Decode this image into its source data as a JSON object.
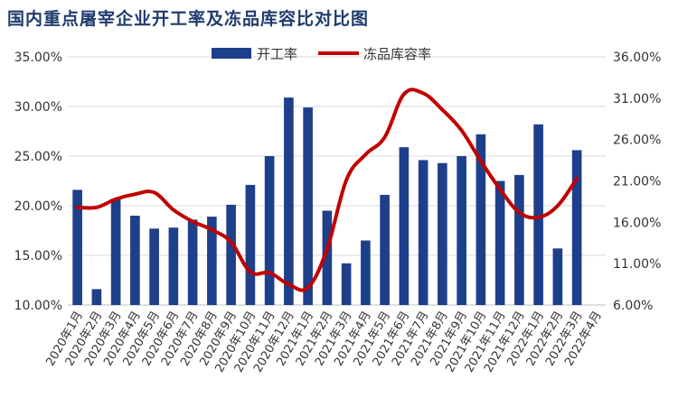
{
  "title": "国内重点屠宰企业开工率及冻品库容比对比图",
  "colors": {
    "bar": "#1e3f8a",
    "line": "#c00000",
    "title": "#1f3b6f"
  },
  "chart_data": {
    "type": "bar",
    "categories": [
      "2020年1月",
      "2020年2月",
      "2020年3月",
      "2020年4月",
      "2020年5月",
      "2020年6月",
      "2020年7月",
      "2020年8月",
      "2020年9月",
      "2020年10月",
      "2020年11月",
      "2020年12月",
      "2021年1月",
      "2021年2月",
      "2021年3月",
      "2021年4月",
      "2021年5月",
      "2021年6月",
      "2021年7月",
      "2021年8月",
      "2021年9月",
      "2021年10月",
      "2021年11月",
      "2021年12月",
      "2022年1月",
      "2022年2月",
      "2022年3月",
      "2022年4月"
    ],
    "x_tick_labels": [
      "2020年1月",
      "2020年2月",
      "2020年3月",
      "2020年4月",
      "2020年5月",
      "2020年6月",
      "2020年7月",
      "2020年8月",
      "2020年9月",
      "2020年10月",
      "2020年11月",
      "2020年12月",
      "2021年1月",
      "2021年2月",
      "2021年3月",
      "2021年4月",
      "2021年5月",
      "2021年6月",
      "2021年7月",
      "2021年8月",
      "2021年9月",
      "2021年10月",
      "2021年11月",
      "2021年12月",
      "2022年1月",
      "2022年2月",
      "2022年3月",
      "2022年4月"
    ],
    "series": [
      {
        "name": "开工率",
        "type": "bar",
        "axis": "left",
        "values": [
          21.6,
          11.6,
          20.7,
          19.0,
          17.7,
          17.8,
          18.6,
          18.9,
          20.1,
          22.1,
          25.0,
          30.9,
          29.9,
          19.5,
          14.2,
          16.5,
          21.1,
          25.9,
          24.6,
          24.3,
          25.0,
          27.2,
          22.5,
          23.1,
          28.2,
          15.7,
          25.6,
          null
        ]
      },
      {
        "name": "冻品库容率",
        "type": "line",
        "axis": "right",
        "values": [
          17.8,
          17.8,
          18.8,
          19.4,
          19.6,
          17.5,
          16.1,
          15.1,
          13.6,
          10.0,
          9.9,
          8.5,
          8.1,
          12.8,
          21.1,
          24.2,
          26.3,
          31.5,
          31.6,
          29.6,
          27.1,
          23.4,
          20.0,
          17.2,
          16.6,
          18.0,
          21.3,
          null
        ]
      }
    ],
    "y_left": {
      "min": 10,
      "max": 35,
      "ticks": [
        "10.00%",
        "15.00%",
        "20.00%",
        "25.00%",
        "30.00%",
        "35.00%"
      ]
    },
    "y_right": {
      "min": 6,
      "max": 36,
      "ticks": [
        "6.00%",
        "11.00%",
        "16.00%",
        "21.00%",
        "26.00%",
        "31.00%",
        "36.00%"
      ]
    },
    "legend_position": "top-center",
    "grid": true
  }
}
